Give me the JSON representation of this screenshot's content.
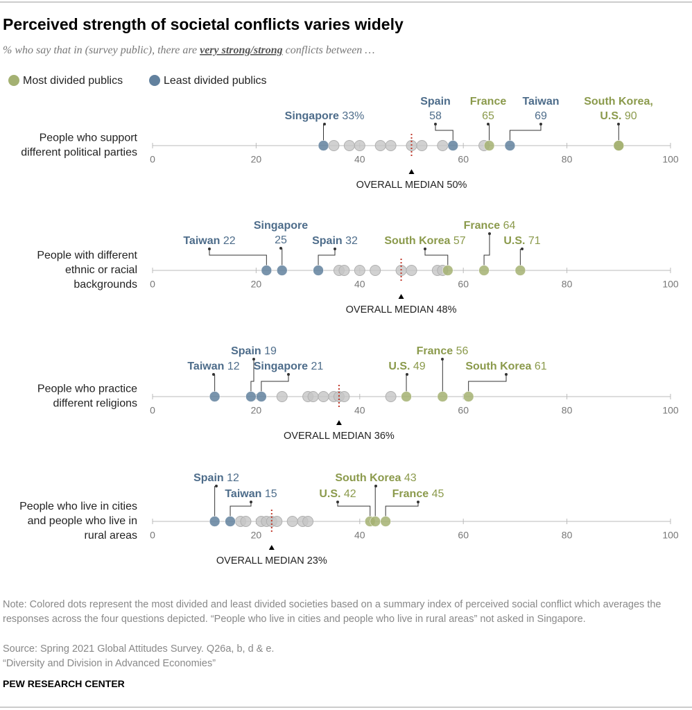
{
  "chart_data": {
    "type": "dot",
    "title": "Perceived strength of societal conflicts varies widely",
    "subtitle": [
      "% who say that in (survey public), there are ",
      "very strong/strong",
      " conflicts between …"
    ],
    "series": [
      {
        "name": "Most divided publics",
        "color": "#a4b172",
        "text_color": "#8b9a4c"
      },
      {
        "name": "Least divided publics",
        "color": "#62819e",
        "text_color": "#4d6c8a"
      }
    ],
    "xlim": [
      0,
      100
    ],
    "xticks": [
      0,
      20,
      40,
      60,
      80,
      100
    ],
    "rows": [
      {
        "label": [
          "People who support",
          "different political parties"
        ],
        "median": {
          "value": 50,
          "label": "OVERALL MEDIAN 50%"
        },
        "highlights": [
          [
            {
              "name": "France",
              "value": 65
            },
            {
              "name": "South Korea,",
              "value": 90
            },
            {
              "name": "U.S.",
              "value": 90
            }
          ],
          [
            {
              "name": "Singapore",
              "value": 33,
              "value_label": "33%"
            },
            {
              "name": "Spain",
              "value": 58
            },
            {
              "name": "Taiwan",
              "value": 69
            }
          ]
        ],
        "others": [
          35,
          38,
          40,
          44,
          46,
          50,
          52,
          56,
          64
        ]
      },
      {
        "label": [
          "People with different",
          "ethnic or racial",
          "backgrounds"
        ],
        "median": {
          "value": 48,
          "label": "OVERALL MEDIAN 48%"
        },
        "highlights": [
          [
            {
              "name": "South Korea",
              "value": 57
            },
            {
              "name": "France",
              "value": 64
            },
            {
              "name": "U.S.",
              "value": 71
            }
          ],
          [
            {
              "name": "Taiwan",
              "value": 22
            },
            {
              "name": "Singapore",
              "value": 25
            },
            {
              "name": "Spain",
              "value": 32
            }
          ]
        ],
        "others": [
          36,
          37,
          40,
          43,
          48,
          50,
          55,
          56
        ]
      },
      {
        "label": [
          "People who practice",
          "different religions"
        ],
        "median": {
          "value": 36,
          "label": "OVERALL MEDIAN 36%"
        },
        "highlights": [
          [
            {
              "name": "U.S.",
              "value": 49
            },
            {
              "name": "France",
              "value": 56
            },
            {
              "name": "South Korea",
              "value": 61
            }
          ],
          [
            {
              "name": "Taiwan",
              "value": 12
            },
            {
              "name": "Spain",
              "value": 19
            },
            {
              "name": "Singapore",
              "value": 21
            }
          ]
        ],
        "others": [
          25,
          30,
          31,
          33,
          35,
          36,
          37,
          46
        ]
      },
      {
        "label": [
          "People who live in cities",
          "and people who live in",
          "rural areas"
        ],
        "median": {
          "value": 23,
          "label": "OVERALL MEDIAN 23%"
        },
        "highlights": [
          [
            {
              "name": "U.S.",
              "value": 42
            },
            {
              "name": "South Korea",
              "value": 43
            },
            {
              "name": "France",
              "value": 45
            }
          ],
          [
            {
              "name": "Spain",
              "value": 12
            },
            {
              "name": "Taiwan",
              "value": 15
            }
          ]
        ],
        "others": [
          17,
          18,
          21,
          22,
          23,
          24,
          27,
          29,
          30
        ]
      }
    ],
    "note": "Note: Colored dots represent the most divided and least divided societies based on a summary index of perceived social conflict which averages the responses across the four questions depicted. “People who live in cities and people who live in rural areas” not asked in Singapore.",
    "source": "Source: Spring 2021 Global Attitudes Survey. Q26a, b, d & e.",
    "report": "“Diversity and Division in Advanced Economies”",
    "credit": "PEW RESEARCH CENTER"
  }
}
